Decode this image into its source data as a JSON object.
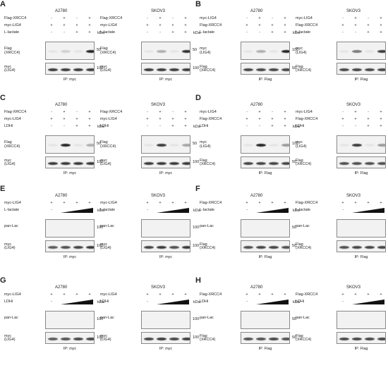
{
  "panels": [
    {
      "letter": "A",
      "blocks": [
        {
          "title": "A2780",
          "rows": [
            {
              "label": "Flag-XRCC4",
              "vals": [
                "-",
                "+",
                "-",
                "+"
              ]
            },
            {
              "label": "myc-LIG4",
              "vals": [
                "+",
                "+",
                "+",
                "+"
              ]
            },
            {
              "label": "L-lactate",
              "vals": [
                "-",
                "-",
                "+",
                "+"
              ]
            }
          ],
          "blots": [
            {
              "left": "Flag\n(XRCC4)",
              "right": "50",
              "bands": [
                0.05,
                0.15,
                0.05,
                0.95
              ]
            },
            {
              "left": "myc\n(LIG4)",
              "right": "100",
              "bands": [
                0.85,
                0.85,
                0.85,
                0.85
              ]
            }
          ],
          "ip": "IP: myc"
        },
        {
          "title": "SKOV3",
          "rows": [
            {
              "label": "Flag-XRCC4",
              "vals": [
                "-",
                "+",
                "-",
                "+"
              ]
            },
            {
              "label": "myc-LIG4",
              "vals": [
                "+",
                "+",
                "+",
                "+"
              ]
            },
            {
              "label": "L-lactate",
              "vals": [
                "-",
                "-",
                "+",
                "+"
              ]
            }
          ],
          "blots": [
            {
              "left": "Flag\n(XRCC4)",
              "right": "50",
              "bands": [
                0.05,
                0.3,
                0.05,
                0.9
              ]
            },
            {
              "left": "myc\n(LIG4)",
              "right": "100",
              "bands": [
                0.85,
                0.85,
                0.85,
                0.85
              ]
            }
          ],
          "ip": "IP: myc"
        }
      ]
    },
    {
      "letter": "B",
      "blocks": [
        {
          "title": "A2780",
          "rows": [
            {
              "label": "myc-LIG4",
              "vals": [
                "-",
                "+",
                "-",
                "+"
              ]
            },
            {
              "label": "Flag-XRCC4",
              "vals": [
                "+",
                "+",
                "+",
                "+"
              ]
            },
            {
              "label": "L-lactate",
              "vals": [
                "-",
                "-",
                "+",
                "+"
              ]
            }
          ],
          "blots": [
            {
              "left": "myc\n(LIG4)",
              "right": "100",
              "bands": [
                0.05,
                0.3,
                0.05,
                0.95
              ]
            },
            {
              "left": "Flag\n(XRCC4)",
              "right": "50",
              "bands": [
                0.8,
                0.8,
                0.8,
                0.8
              ]
            }
          ],
          "ip": "IP: Flag"
        },
        {
          "title": "SKOV3",
          "rows": [
            {
              "label": "myc-LIG4",
              "vals": [
                "-",
                "+",
                "-",
                "+"
              ]
            },
            {
              "label": "Flag-XRCC4",
              "vals": [
                "+",
                "+",
                "+",
                "+"
              ]
            },
            {
              "label": "L-lactate",
              "vals": [
                "-",
                "-",
                "+",
                "+"
              ]
            }
          ],
          "blots": [
            {
              "left": "myc\n(LIG4)",
              "right": "100",
              "bands": [
                0.05,
                0.55,
                0.05,
                0.85
              ]
            },
            {
              "left": "Flag\n(XRCC4)",
              "right": "50",
              "bands": [
                0.8,
                0.8,
                0.8,
                0.8
              ]
            }
          ],
          "ip": "IP: Flag"
        }
      ]
    },
    {
      "letter": "C",
      "blocks": [
        {
          "title": "A2780",
          "rows": [
            {
              "label": "Flag-XRCC4",
              "vals": [
                "-",
                "+",
                "-",
                "+"
              ]
            },
            {
              "label": "myc-LIG4",
              "vals": [
                "+",
                "+",
                "+",
                "+"
              ]
            },
            {
              "label": "LDHi",
              "vals": [
                "-",
                "-",
                "+",
                "+"
              ]
            }
          ],
          "blots": [
            {
              "left": "Flag\n(XRCC4)",
              "right": "50",
              "bands": [
                0.05,
                0.95,
                0.05,
                0.3
              ]
            },
            {
              "left": "myc\n(LIG4)",
              "right": "100",
              "bands": [
                0.85,
                0.85,
                0.85,
                0.85
              ]
            }
          ],
          "ip": "IP: myc"
        },
        {
          "title": "SKOV3",
          "rows": [
            {
              "label": "Flag-XRCC4",
              "vals": [
                "-",
                "+",
                "-",
                "+"
              ]
            },
            {
              "label": "myc-LIG4",
              "vals": [
                "+",
                "+",
                "+",
                "+"
              ]
            },
            {
              "label": "LDHi",
              "vals": [
                "-",
                "-",
                "+",
                "+"
              ]
            }
          ],
          "blots": [
            {
              "left": "Flag\n(XRCC4)",
              "right": "50",
              "bands": [
                0.05,
                0.85,
                0.05,
                0.35
              ]
            },
            {
              "left": "myc\n(LIG4)",
              "right": "100",
              "bands": [
                0.85,
                0.85,
                0.85,
                0.85
              ]
            }
          ],
          "ip": "IP: myc"
        }
      ]
    },
    {
      "letter": "D",
      "blocks": [
        {
          "title": "A2780",
          "rows": [
            {
              "label": "myc-LIG4",
              "vals": [
                "-",
                "+",
                "-",
                "+"
              ]
            },
            {
              "label": "Flag-XRCC4",
              "vals": [
                "+",
                "+",
                "+",
                "+"
              ]
            },
            {
              "label": "LDHi",
              "vals": [
                "-",
                "-",
                "+",
                "+"
              ]
            }
          ],
          "blots": [
            {
              "left": "myc\n(LIG4)",
              "right": "100",
              "bands": [
                0.05,
                0.95,
                0.05,
                0.4
              ]
            },
            {
              "left": "Flag\n(XRCC4)",
              "right": "50",
              "bands": [
                0.8,
                0.8,
                0.8,
                0.8
              ]
            }
          ],
          "ip": "IP: Flag"
        },
        {
          "title": "SKOV3",
          "rows": [
            {
              "label": "myc-LIG4",
              "vals": [
                "-",
                "+",
                "-",
                "+"
              ]
            },
            {
              "label": "Flag-XRCC4",
              "vals": [
                "+",
                "+",
                "+",
                "+"
              ]
            },
            {
              "label": "LDHi",
              "vals": [
                "-",
                "-",
                "+",
                "+"
              ]
            }
          ],
          "blots": [
            {
              "left": "myc\n(LIG4)",
              "right": "100",
              "bands": [
                0.05,
                0.85,
                0.05,
                0.4
              ]
            },
            {
              "left": "Flag\n(XRCC4)",
              "right": "50",
              "bands": [
                0.75,
                0.75,
                0.75,
                0.75
              ]
            }
          ],
          "ip": "IP: Flag"
        }
      ]
    },
    {
      "letter": "E",
      "blocks": [
        {
          "title": "A2780",
          "rows": [
            {
              "label": "myc-LIG4",
              "vals": [
                "+",
                "+",
                "+",
                "+"
              ]
            },
            {
              "label": "L-lactate",
              "vals": [
                "-",
                "wedge",
                "wedge",
                "wedge"
              ]
            }
          ],
          "blots": [
            {
              "left": "pan-Lac",
              "right": "100",
              "bands": [
                0,
                0,
                0,
                0
              ]
            },
            {
              "left": "myc\n(LIG4)",
              "right": "100",
              "bands": [
                0.7,
                0.75,
                0.8,
                0.85
              ]
            }
          ],
          "ip": "IP: myc"
        },
        {
          "title": "SKOV3",
          "rows": [
            {
              "label": "myc-LIG4",
              "vals": [
                "+",
                "+",
                "+",
                "+"
              ]
            },
            {
              "label": "L-lactate",
              "vals": [
                "-",
                "wedge",
                "wedge",
                "wedge"
              ]
            }
          ],
          "blots": [
            {
              "left": "pan-Lac",
              "right": "100",
              "bands": [
                0,
                0,
                0,
                0
              ]
            },
            {
              "left": "myc\n(LIG4)",
              "right": "100",
              "bands": [
                0.8,
                0.85,
                0.75,
                0.85
              ]
            }
          ],
          "ip": "IP: myc"
        }
      ]
    },
    {
      "letter": "F",
      "blocks": [
        {
          "title": "A2780",
          "rows": [
            {
              "label": "Flag-XRCC4",
              "vals": [
                "+",
                "+",
                "+",
                "+"
              ]
            },
            {
              "label": "L-lactate",
              "vals": [
                "-",
                "wedge",
                "wedge",
                "wedge"
              ]
            }
          ],
          "blots": [
            {
              "left": "pan-Lac",
              "right": "50",
              "bands": [
                0,
                0,
                0,
                0
              ]
            },
            {
              "left": "Flag\n(XRCC4)",
              "right": "50",
              "bands": [
                0.75,
                0.8,
                0.8,
                0.75
              ]
            }
          ],
          "ip": "IP: Flag"
        },
        {
          "title": "SKOV3",
          "rows": [
            {
              "label": "Flag-XRCC4",
              "vals": [
                "+",
                "+",
                "+",
                "+"
              ]
            },
            {
              "label": "L-lactate",
              "vals": [
                "-",
                "wedge",
                "wedge",
                "wedge"
              ]
            }
          ],
          "blots": [
            {
              "left": "pan-Lac",
              "right": "50",
              "bands": [
                0,
                0,
                0,
                0
              ]
            },
            {
              "left": "Flag\n(XRCC4)",
              "right": "50",
              "bands": [
                0.75,
                0.8,
                0.8,
                0.8
              ]
            }
          ],
          "ip": "IP: Flag"
        }
      ]
    },
    {
      "letter": "G",
      "blocks": [
        {
          "title": "A2780",
          "rows": [
            {
              "label": "myc-LIG4",
              "vals": [
                "+",
                "+",
                "+",
                "+"
              ]
            },
            {
              "label": "LDHi",
              "vals": [
                "-",
                "wedge",
                "wedge",
                "wedge"
              ]
            }
          ],
          "blots": [
            {
              "left": "pan-Lac",
              "right": "100",
              "bands": [
                0,
                0,
                0,
                0
              ]
            },
            {
              "left": "myc\n(LIG4)",
              "right": "100",
              "bands": [
                0.7,
                0.75,
                0.8,
                0.8
              ]
            }
          ],
          "ip": "IP: myc"
        },
        {
          "title": "SKOV3",
          "rows": [
            {
              "label": "myc-LIG4",
              "vals": [
                "+",
                "+",
                "+",
                "+"
              ]
            },
            {
              "label": "LDHi",
              "vals": [
                "-",
                "wedge",
                "wedge",
                "wedge"
              ]
            }
          ],
          "blots": [
            {
              "left": "pan-Lac",
              "right": "100",
              "bands": [
                0,
                0,
                0,
                0
              ]
            },
            {
              "left": "myc\n(LIG4)",
              "right": "100",
              "bands": [
                0.8,
                0.85,
                0.8,
                0.85
              ]
            }
          ],
          "ip": "IP: myc"
        }
      ]
    },
    {
      "letter": "H",
      "blocks": [
        {
          "title": "A2780",
          "rows": [
            {
              "label": "Flag-XRCC4",
              "vals": [
                "+",
                "+",
                "+",
                "+"
              ]
            },
            {
              "label": "LDHi",
              "vals": [
                "-",
                "wedge",
                "wedge",
                "wedge"
              ]
            }
          ],
          "blots": [
            {
              "left": "pan-Lac",
              "right": "50",
              "bands": [
                0,
                0,
                0,
                0
              ]
            },
            {
              "left": "Flag\n(XRCC4)",
              "right": "50",
              "bands": [
                0.75,
                0.75,
                0.8,
                0.75
              ]
            }
          ],
          "ip": "IP: Flag"
        },
        {
          "title": "SKOV3",
          "rows": [
            {
              "label": "Flag-XRCC4",
              "vals": [
                "+",
                "+",
                "+",
                "+"
              ]
            },
            {
              "label": "LDHi",
              "vals": [
                "-",
                "wedge",
                "wedge",
                "wedge"
              ]
            }
          ],
          "blots": [
            {
              "left": "pan-Lac",
              "right": "50",
              "bands": [
                0,
                0,
                0,
                0
              ]
            },
            {
              "left": "Flag\n(XRCC4)",
              "right": "50",
              "bands": [
                0.8,
                0.8,
                0.8,
                0.8
              ]
            }
          ],
          "ip": "IP: Flag"
        }
      ]
    }
  ],
  "kda_label": "kDa",
  "colors": {
    "band": "#1a1a1a",
    "membrane": "#f2f2f2"
  }
}
